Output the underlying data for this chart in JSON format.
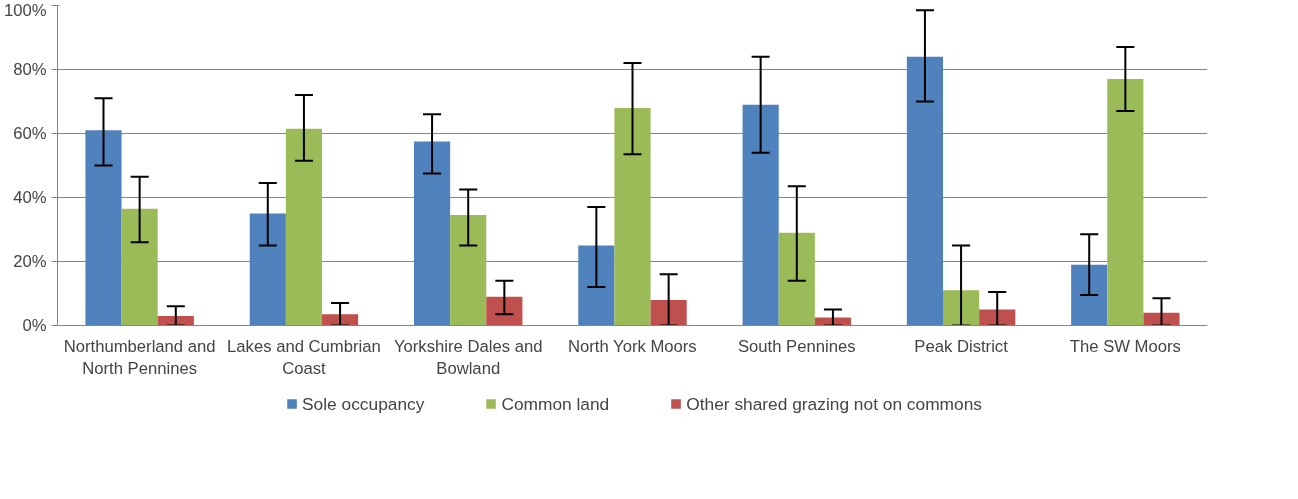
{
  "chart_data": {
    "type": "bar",
    "categories": [
      "Northumberland and North Pennines",
      "Lakes and Cumbrian Coast",
      "Yorkshire Dales and Bowland",
      "North York Moors",
      "South Pennines",
      "Peak District",
      "The SW Moors"
    ],
    "series": [
      {
        "name": "Sole occupancy",
        "color": "#4f81bd",
        "values": [
          61,
          35,
          57.5,
          25,
          69,
          84,
          19
        ],
        "errors": [
          [
            50,
            71
          ],
          [
            25,
            44.5
          ],
          [
            47.5,
            66
          ],
          [
            12,
            37
          ],
          [
            54,
            84
          ],
          [
            70,
            98.5
          ],
          [
            9.5,
            28.5
          ]
        ]
      },
      {
        "name": "Common land",
        "color": "#9bbb59",
        "values": [
          36.5,
          61.5,
          34.5,
          68,
          29,
          11,
          77
        ],
        "errors": [
          [
            26,
            46.5
          ],
          [
            51.5,
            72
          ],
          [
            25,
            42.5
          ],
          [
            53.5,
            82
          ],
          [
            14,
            43.5
          ],
          [
            0,
            25
          ],
          [
            67,
            87
          ]
        ]
      },
      {
        "name": "Other shared grazing not on commons",
        "color": "#c0504d",
        "values": [
          3,
          3.5,
          9,
          8,
          2.5,
          5,
          4
        ],
        "errors": [
          [
            0,
            6
          ],
          [
            0,
            7
          ],
          [
            3.5,
            14
          ],
          [
            0,
            16
          ],
          [
            0,
            5
          ],
          [
            0,
            10.5
          ],
          [
            0,
            8.5
          ]
        ]
      }
    ],
    "ylim": [
      0,
      100
    ],
    "yticks": [
      {
        "value": 0,
        "label": "0%"
      },
      {
        "value": 20,
        "label": "20%"
      },
      {
        "value": 40,
        "label": "40%"
      },
      {
        "value": 60,
        "label": "60%"
      },
      {
        "value": 80,
        "label": "80%"
      },
      {
        "value": 100,
        "label": "100%"
      }
    ],
    "grid": "y",
    "legend": "bottom"
  }
}
